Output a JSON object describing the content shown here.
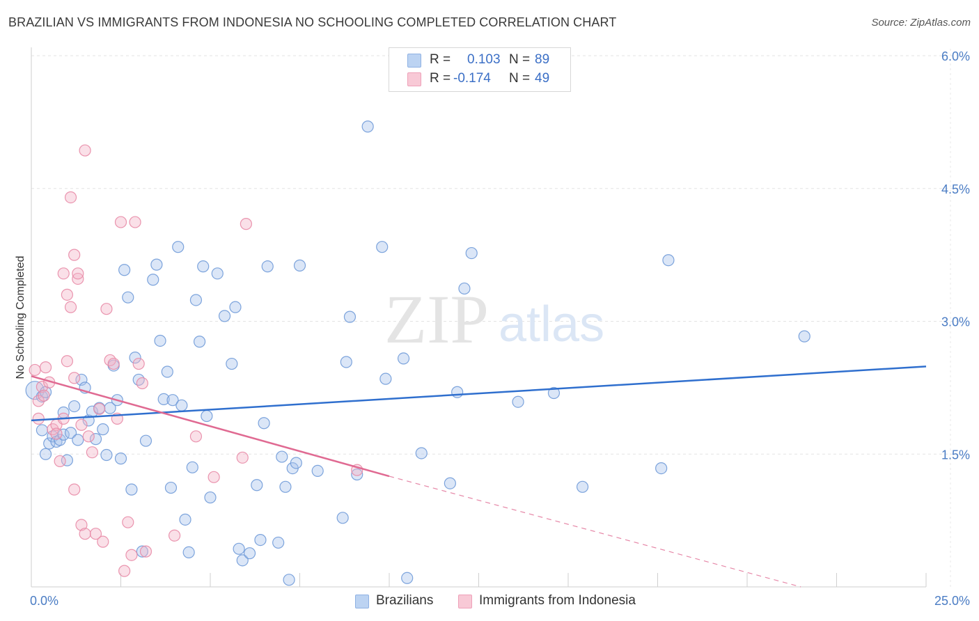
{
  "title": "BRAZILIAN VS IMMIGRANTS FROM INDONESIA NO SCHOOLING COMPLETED CORRELATION CHART",
  "source": "Source: ZipAtlas.com",
  "watermark": {
    "zip": "ZIP",
    "atlas": "atlas"
  },
  "legend_top": [
    {
      "r_label": "R =",
      "r_value": "0.103",
      "n_label": "N =",
      "n_value": "89",
      "color": "#a9c4ec"
    },
    {
      "r_label": "R =",
      "r_value": "-0.174",
      "n_label": "N =",
      "n_value": "49",
      "color": "#f4b6c8"
    }
  ],
  "legend_bottom": [
    {
      "label": "Brazilians",
      "color": "#a9c4ec"
    },
    {
      "label": "Immigrants from Indonesia",
      "color": "#f4b6c8"
    }
  ],
  "chart_data": {
    "type": "scatter",
    "title": "BRAZILIAN VS IMMIGRANTS FROM INDONESIA NO SCHOOLING COMPLETED CORRELATION CHART",
    "xlabel": "",
    "ylabel": "No Schooling Completed",
    "xlim": [
      0,
      25
    ],
    "ylim": [
      0,
      6.15
    ],
    "x_tick_labels": [
      {
        "value": 0,
        "label": "0.0%"
      },
      {
        "value": 25,
        "label": "25.0%"
      }
    ],
    "y_tick_labels": [
      {
        "value": 1.5,
        "label": "1.5%"
      },
      {
        "value": 3.0,
        "label": "3.0%"
      },
      {
        "value": 4.5,
        "label": "4.5%"
      },
      {
        "value": 6.0,
        "label": "6.0%"
      }
    ],
    "grid": true,
    "series": [
      {
        "name": "Brazilians",
        "color": "#a9c4ec",
        "stroke": "#6f9ad8",
        "trend": {
          "x0": 0,
          "y0": 1.88,
          "x1": 25,
          "y1": 2.49,
          "color": "#2f6fce"
        },
        "points": [
          [
            0.1,
            2.22
          ],
          [
            0.3,
            2.15
          ],
          [
            0.4,
            2.2
          ],
          [
            0.3,
            1.77
          ],
          [
            0.4,
            1.5
          ],
          [
            0.5,
            1.62
          ],
          [
            0.6,
            1.7
          ],
          [
            0.7,
            1.64
          ],
          [
            0.8,
            1.66
          ],
          [
            0.9,
            1.97
          ],
          [
            0.9,
            1.72
          ],
          [
            1.0,
            1.43
          ],
          [
            1.1,
            1.74
          ],
          [
            1.2,
            2.04
          ],
          [
            1.3,
            1.66
          ],
          [
            1.4,
            2.34
          ],
          [
            1.5,
            2.25
          ],
          [
            1.6,
            1.88
          ],
          [
            1.7,
            1.98
          ],
          [
            1.8,
            1.67
          ],
          [
            1.9,
            2.02
          ],
          [
            2.0,
            1.78
          ],
          [
            2.1,
            1.49
          ],
          [
            2.2,
            2.02
          ],
          [
            2.3,
            2.5
          ],
          [
            2.4,
            2.11
          ],
          [
            2.5,
            1.45
          ],
          [
            2.6,
            3.58
          ],
          [
            2.7,
            3.27
          ],
          [
            2.8,
            1.1
          ],
          [
            2.9,
            2.59
          ],
          [
            3.0,
            2.34
          ],
          [
            3.1,
            0.4
          ],
          [
            3.2,
            1.65
          ],
          [
            3.4,
            3.47
          ],
          [
            3.5,
            3.64
          ],
          [
            3.6,
            2.78
          ],
          [
            3.7,
            2.12
          ],
          [
            3.8,
            2.43
          ],
          [
            3.9,
            1.12
          ],
          [
            3.95,
            2.11
          ],
          [
            4.1,
            3.84
          ],
          [
            4.2,
            2.05
          ],
          [
            4.3,
            0.76
          ],
          [
            4.4,
            0.39
          ],
          [
            4.5,
            1.35
          ],
          [
            4.6,
            3.24
          ],
          [
            4.7,
            2.77
          ],
          [
            4.8,
            3.62
          ],
          [
            4.9,
            1.93
          ],
          [
            5.0,
            1.01
          ],
          [
            5.2,
            3.54
          ],
          [
            5.4,
            3.06
          ],
          [
            5.6,
            2.52
          ],
          [
            5.7,
            3.16
          ],
          [
            5.8,
            0.43
          ],
          [
            5.9,
            0.3
          ],
          [
            6.1,
            0.38
          ],
          [
            6.3,
            1.15
          ],
          [
            6.4,
            0.53
          ],
          [
            6.5,
            1.85
          ],
          [
            6.6,
            3.62
          ],
          [
            6.9,
            0.5
          ],
          [
            7.0,
            1.47
          ],
          [
            7.1,
            1.13
          ],
          [
            7.2,
            0.08
          ],
          [
            7.3,
            1.34
          ],
          [
            7.4,
            1.4
          ],
          [
            7.5,
            3.63
          ],
          [
            8.0,
            1.31
          ],
          [
            8.7,
            0.78
          ],
          [
            8.8,
            2.54
          ],
          [
            8.9,
            3.05
          ],
          [
            9.1,
            1.27
          ],
          [
            9.4,
            5.2
          ],
          [
            9.8,
            3.84
          ],
          [
            9.9,
            2.35
          ],
          [
            10.4,
            2.58
          ],
          [
            10.5,
            0.1
          ],
          [
            10.9,
            1.51
          ],
          [
            11.7,
            1.17
          ],
          [
            11.9,
            2.2
          ],
          [
            12.1,
            3.37
          ],
          [
            12.3,
            3.77
          ],
          [
            13.6,
            2.09
          ],
          [
            14.6,
            2.19
          ],
          [
            15.4,
            1.13
          ],
          [
            17.6,
            1.34
          ],
          [
            17.8,
            3.69
          ],
          [
            21.6,
            2.83
          ]
        ]
      },
      {
        "name": "Immigrants from Indonesia",
        "color": "#f4b6c8",
        "stroke": "#e88aa6",
        "trend": {
          "x0": 0,
          "y0": 2.38,
          "x1": 10,
          "y1": 1.25,
          "color": "#e06a92"
        },
        "trend_dashed": {
          "x0": 10,
          "y0": 1.25,
          "x1": 21.5,
          "y1": 0.0
        },
        "points": [
          [
            0.1,
            2.45
          ],
          [
            0.2,
            2.1
          ],
          [
            0.2,
            1.9
          ],
          [
            0.3,
            2.26
          ],
          [
            0.35,
            2.16
          ],
          [
            0.4,
            2.48
          ],
          [
            0.5,
            2.31
          ],
          [
            0.6,
            1.78
          ],
          [
            0.7,
            1.83
          ],
          [
            0.7,
            1.73
          ],
          [
            0.8,
            1.42
          ],
          [
            0.9,
            1.9
          ],
          [
            0.9,
            3.54
          ],
          [
            1.0,
            3.3
          ],
          [
            1.0,
            2.55
          ],
          [
            1.1,
            4.4
          ],
          [
            1.1,
            3.16
          ],
          [
            1.2,
            3.75
          ],
          [
            1.2,
            2.36
          ],
          [
            1.2,
            1.1
          ],
          [
            1.3,
            3.48
          ],
          [
            1.3,
            3.54
          ],
          [
            1.4,
            1.83
          ],
          [
            1.4,
            0.7
          ],
          [
            1.5,
            4.93
          ],
          [
            1.5,
            0.6
          ],
          [
            1.6,
            1.7
          ],
          [
            1.7,
            1.52
          ],
          [
            1.8,
            0.6
          ],
          [
            1.9,
            2.01
          ],
          [
            2.0,
            0.51
          ],
          [
            2.1,
            3.14
          ],
          [
            2.2,
            2.56
          ],
          [
            2.3,
            2.52
          ],
          [
            2.4,
            1.9
          ],
          [
            2.5,
            4.12
          ],
          [
            2.6,
            0.18
          ],
          [
            2.7,
            0.73
          ],
          [
            2.8,
            0.36
          ],
          [
            2.9,
            4.12
          ],
          [
            3.0,
            2.52
          ],
          [
            3.1,
            2.3
          ],
          [
            3.2,
            0.4
          ],
          [
            4.0,
            0.58
          ],
          [
            4.6,
            1.7
          ],
          [
            5.1,
            1.24
          ],
          [
            5.9,
            1.46
          ],
          [
            6.0,
            4.1
          ],
          [
            9.1,
            1.32
          ]
        ]
      }
    ]
  }
}
